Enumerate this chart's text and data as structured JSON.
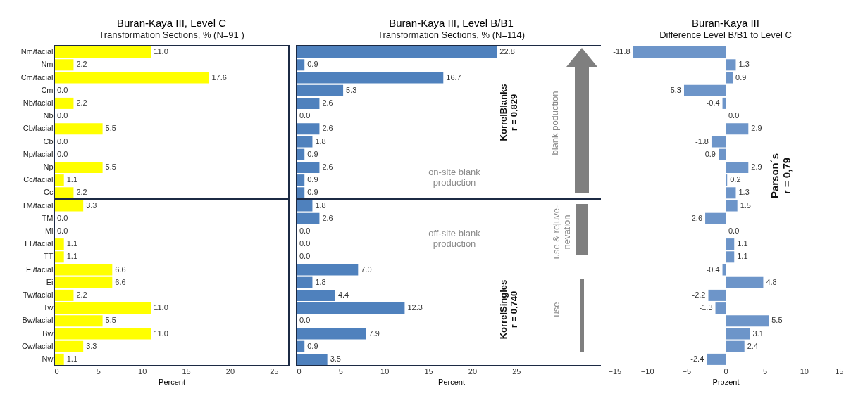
{
  "chart_data": [
    {
      "type": "bar",
      "orientation": "horizontal",
      "title": "Buran-Kaya III, Level C",
      "subtitle": "Transformation Sections, % (N=91 )",
      "xlabel": "Percent",
      "categories": [
        "Nm/facial",
        "Nm",
        "Cm/facial",
        "Cm",
        "Nb/facial",
        "Nb",
        "Cb/facial",
        "Cb",
        "Np/facial",
        "Np",
        "Cc/facial",
        "Cc",
        "TM/facial",
        "TM",
        "Mi",
        "TT/facial",
        "TT",
        "Ei/facial",
        "Ei",
        "Tw/facial",
        "Tw",
        "Bw/facial",
        "Bw",
        "Cw/facial",
        "Nw"
      ],
      "values": [
        11.0,
        2.2,
        17.6,
        0.0,
        2.2,
        0.0,
        5.5,
        0.0,
        0.0,
        5.5,
        1.1,
        2.2,
        3.3,
        0.0,
        0.0,
        1.1,
        1.1,
        6.6,
        6.6,
        2.2,
        11.0,
        5.5,
        11.0,
        3.3,
        1.1
      ],
      "value_labels": [
        "11.0",
        "2.2",
        "17.6",
        "0.0",
        "2.2",
        "0.0",
        "5.5",
        "0.0",
        "0.0",
        "5.5",
        "1.1",
        "2.2",
        "3.3",
        "0.0",
        "0.0",
        "1.1",
        "1.1",
        "6.6",
        "6.6",
        "2.2",
        "11.0",
        "5.5",
        "11.0",
        "3.3",
        "1.1"
      ],
      "color": "#ffff00",
      "xlim": [
        0,
        26.7
      ],
      "xticks": [
        0,
        5,
        10,
        15,
        20,
        25
      ]
    },
    {
      "type": "bar",
      "orientation": "horizontal",
      "title": "Buran-Kaya III, Level B/B1",
      "subtitle": "Transformation Sections, % (N=114)",
      "xlabel": "Percent",
      "categories": [
        null,
        null,
        null,
        null,
        null,
        null,
        null,
        null,
        null,
        null,
        null,
        null,
        null,
        null,
        null,
        null,
        null,
        null,
        null,
        null,
        null,
        null,
        null,
        null,
        null
      ],
      "values": [
        22.8,
        0.9,
        16.7,
        5.3,
        2.6,
        0.0,
        2.6,
        1.8,
        0.9,
        2.6,
        0.9,
        0.9,
        1.8,
        2.6,
        0.0,
        0.0,
        0.0,
        7.0,
        1.8,
        4.4,
        12.3,
        0.0,
        7.9,
        0.9,
        3.5
      ],
      "value_labels": [
        "22.8",
        "0.9",
        "16.7",
        "5.3",
        "2.6",
        "0.0",
        "2.6",
        "1.8",
        "0.9",
        "2.6",
        "0.9",
        "0.9",
        "1.8",
        "2.6",
        "0.0",
        "0.0",
        "0.0",
        "7.0",
        "1.8",
        "4.4",
        "12.3",
        "0.0",
        "7.9",
        "0.9",
        "3.5"
      ],
      "color": "#4f81bd",
      "xlim": [
        0,
        35.2
      ],
      "xticks": [
        0,
        5,
        10,
        15,
        20,
        25
      ],
      "annotations": [
        "KorrelBlanks\nr = 0,829",
        "on-site blank\nproduction",
        "blank poduction",
        "off-site blank\nproduction",
        "use & rejuve-\nnevation",
        "KorrelSingles\nr = 0,740",
        "use"
      ]
    },
    {
      "type": "bar",
      "orientation": "horizontal",
      "title": "Buran-Kaya III",
      "subtitle": "Difference Level B/B1 to Level C",
      "xlabel": "Prozent",
      "categories": [
        null,
        null,
        null,
        null,
        null,
        null,
        null,
        null,
        null,
        null,
        null,
        null,
        null,
        null,
        null,
        null,
        null,
        null,
        null,
        null,
        null,
        null,
        null,
        null,
        null
      ],
      "values": [
        -11.8,
        1.3,
        0.9,
        -5.3,
        -0.4,
        0.0,
        2.9,
        -1.8,
        -0.9,
        2.9,
        0.2,
        1.3,
        1.5,
        -2.6,
        0.0,
        1.1,
        1.1,
        -0.4,
        4.8,
        -2.2,
        -1.3,
        5.5,
        3.1,
        2.4,
        -2.4
      ],
      "value_labels": [
        "-11.8",
        "1.3",
        "0.9",
        "-5.3",
        "-0.4",
        "0.0",
        "2.9",
        "-1.8",
        "-0.9",
        "2.9",
        "0.2",
        "1.3",
        "1.5",
        "-2.6",
        "0.0",
        "1.1",
        "1.1",
        "-0.4",
        "4.8",
        "-2.2",
        "-1.3",
        "5.5",
        "3.1",
        "2.4",
        "-2.4"
      ],
      "color": "#6d95c9",
      "xlim": [
        -15,
        15
      ],
      "xticks": [
        -15,
        -10,
        -5,
        0,
        5,
        10,
        15
      ],
      "annotations": [
        "Parson´s\nr = 0,79"
      ]
    }
  ]
}
